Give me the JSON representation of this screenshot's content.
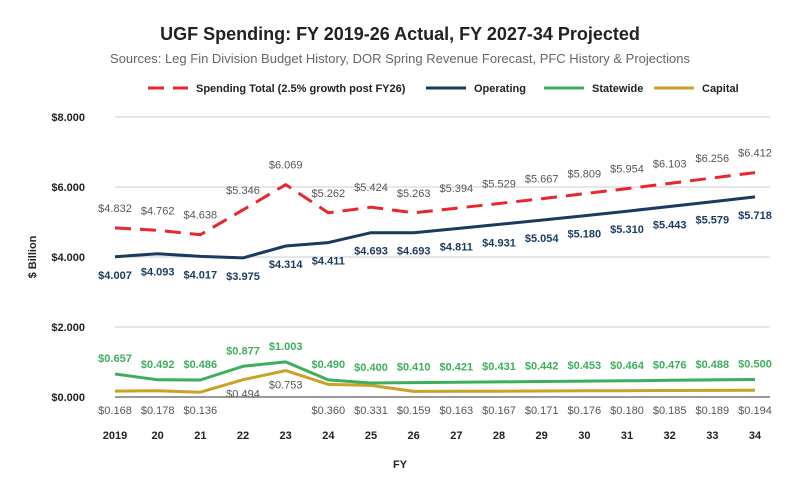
{
  "chart_data": {
    "type": "line",
    "title": "UGF Spending: FY 2019-26 Actual, FY 2027-34 Projected",
    "subtitle": "Sources: Leg Fin Division Budget History, DOR Spring Revenue Forecast, PFC History & Projections",
    "xlabel": "FY",
    "ylabel": "$ Billion",
    "x": [
      "2019",
      "20",
      "21",
      "22",
      "23",
      "24",
      "25",
      "26",
      "27",
      "28",
      "29",
      "30",
      "31",
      "32",
      "33",
      "34"
    ],
    "ylim": [
      0,
      8
    ],
    "yticks": [
      0,
      2,
      4,
      6,
      8
    ],
    "ytick_labels": [
      "$0.000",
      "$2.000",
      "$4.000",
      "$6.000",
      "$8.000"
    ],
    "grid": true,
    "legend_position": "top",
    "series": [
      {
        "name": "Spending Total (2.5% growth post FY26)",
        "color": "#e8262b",
        "style": "dashed",
        "label_color": "#555555",
        "values": [
          4.832,
          4.762,
          4.638,
          5.346,
          6.069,
          5.262,
          5.424,
          5.263,
          5.394,
          5.529,
          5.667,
          5.809,
          5.954,
          6.103,
          6.256,
          6.412
        ],
        "labels": [
          "$4.832",
          "$4.762",
          "$4.638",
          "$5.346",
          "$6.069",
          "$5.262",
          "$5.424",
          "$5.263",
          "$5.394",
          "$5.529",
          "$5.667",
          "$5.809",
          "$5.954",
          "$6.103",
          "$6.256",
          "$6.412"
        ]
      },
      {
        "name": "Operating",
        "color": "#1a3a5f",
        "style": "solid",
        "label_color": "#1a3a5f",
        "values": [
          4.007,
          4.093,
          4.017,
          3.975,
          4.314,
          4.411,
          4.693,
          4.693,
          4.811,
          4.931,
          5.054,
          5.18,
          5.31,
          5.443,
          5.579,
          5.718
        ],
        "labels": [
          "$4.007",
          "$4.093",
          "$4.017",
          "$3.975",
          "$4.314",
          "$4.411",
          "$4.693",
          "$4.693",
          "$4.811",
          "$4.931",
          "$5.054",
          "$5.180",
          "$5.310",
          "$5.443",
          "$5.579",
          "$5.718"
        ]
      },
      {
        "name": "Statewide",
        "color": "#3daf5c",
        "style": "solid",
        "label_color": "#3daf5c",
        "values": [
          0.657,
          0.492,
          0.486,
          0.877,
          1.003,
          0.49,
          0.4,
          0.41,
          0.421,
          0.431,
          0.442,
          0.453,
          0.464,
          0.476,
          0.488,
          0.5
        ],
        "labels": [
          "$0.657",
          "$0.492",
          "$0.486",
          "$0.877",
          "$1.003",
          "$0.490",
          "$0.400",
          "$0.410",
          "$0.421",
          "$0.431",
          "$0.442",
          "$0.453",
          "$0.464",
          "$0.476",
          "$0.488",
          "$0.500"
        ]
      },
      {
        "name": "Capital",
        "color": "#c9a227",
        "style": "solid",
        "label_color": "#555555",
        "values": [
          0.168,
          0.178,
          0.136,
          0.494,
          0.753,
          0.36,
          0.331,
          0.159,
          0.163,
          0.167,
          0.171,
          0.176,
          0.18,
          0.185,
          0.189,
          0.194
        ],
        "labels": [
          "$0.168",
          "$0.178",
          "$0.136",
          "$0.494",
          "$0.753",
          "$0.360",
          "$0.331",
          "$0.159",
          "$0.163",
          "$0.167",
          "$0.171",
          "$0.176",
          "$0.180",
          "$0.185",
          "$0.189",
          "$0.194"
        ]
      }
    ]
  }
}
